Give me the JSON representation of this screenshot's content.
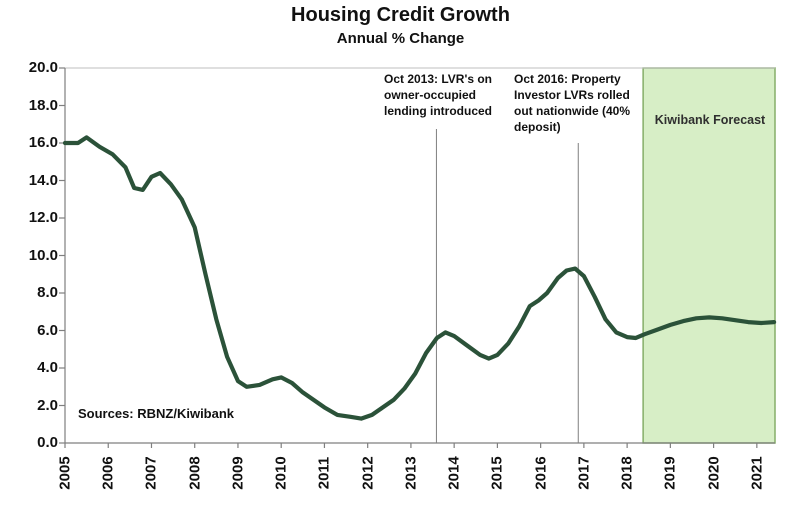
{
  "header": {
    "title": "Housing Credit Growth",
    "subtitle": "Annual % Change"
  },
  "source_note": "Sources: RBNZ/Kiwibank",
  "forecast_region": {
    "label": "Kiwibank Forecast",
    "start_year": 2018.37,
    "end_year": 2021.42,
    "fill_color": "#d7eec6",
    "border_color": "#85ae69"
  },
  "annotations": [
    {
      "id": "lvr-2013",
      "lines": [
        "Oct 2013: LVR's on",
        "owner-occupied",
        "lending introduced"
      ],
      "x_year": 2013.59,
      "line_top_value": 16.75
    },
    {
      "id": "lvr-2016",
      "lines": [
        "Oct 2016: Property",
        "Investor LVRs rolled",
        "out nationwide (40%",
        "deposit)"
      ],
      "x_year": 2016.87,
      "line_top_value": 16.0
    }
  ],
  "colors": {
    "line": "#2b5239",
    "axis": "#7f7f7f",
    "frame": "#bfbfbf",
    "annotation_line": "#7f7f7f",
    "text": "#111111"
  },
  "chart_data": {
    "type": "line",
    "title": "Housing Credit Growth",
    "subtitle": "Annual % Change",
    "xlabel": "",
    "ylabel": "Annual % change",
    "ylim": [
      0,
      20
    ],
    "ytick_step": 2,
    "ytick_decimals": 1,
    "x_range": [
      2005,
      2021.42
    ],
    "x_ticks": [
      2005,
      2006,
      2007,
      2008,
      2009,
      2010,
      2011,
      2012,
      2013,
      2014,
      2015,
      2016,
      2017,
      2018,
      2019,
      2020,
      2021
    ],
    "grid": false,
    "legend": false,
    "forecast_start_year": 2018.37,
    "series": [
      {
        "name": "Housing credit growth (annual % change)",
        "x": [
          2005.0,
          2005.3,
          2005.5,
          2005.8,
          2006.1,
          2006.4,
          2006.6,
          2006.8,
          2007.0,
          2007.2,
          2007.45,
          2007.7,
          2008.0,
          2008.25,
          2008.5,
          2008.75,
          2009.0,
          2009.2,
          2009.5,
          2009.8,
          2010.0,
          2010.25,
          2010.5,
          2010.75,
          2011.0,
          2011.3,
          2011.6,
          2011.85,
          2012.1,
          2012.35,
          2012.6,
          2012.85,
          2013.1,
          2013.35,
          2013.6,
          2013.8,
          2014.0,
          2014.3,
          2014.6,
          2014.8,
          2015.0,
          2015.25,
          2015.5,
          2015.75,
          2015.95,
          2016.15,
          2016.4,
          2016.6,
          2016.8,
          2017.0,
          2017.25,
          2017.5,
          2017.75,
          2018.0,
          2018.2,
          2018.4,
          2018.7,
          2019.0,
          2019.3,
          2019.6,
          2019.9,
          2020.2,
          2020.5,
          2020.8,
          2021.1,
          2021.4
        ],
        "y": [
          16.0,
          16.0,
          16.3,
          15.8,
          15.4,
          14.7,
          13.6,
          13.5,
          14.2,
          14.4,
          13.8,
          13.0,
          11.5,
          9.0,
          6.6,
          4.6,
          3.3,
          3.0,
          3.1,
          3.4,
          3.5,
          3.2,
          2.7,
          2.3,
          1.9,
          1.5,
          1.4,
          1.3,
          1.5,
          1.9,
          2.3,
          2.9,
          3.7,
          4.8,
          5.6,
          5.9,
          5.7,
          5.2,
          4.7,
          4.5,
          4.7,
          5.3,
          6.2,
          7.3,
          7.6,
          8.0,
          8.8,
          9.2,
          9.3,
          8.9,
          7.8,
          6.6,
          5.9,
          5.65,
          5.6,
          5.8,
          6.05,
          6.3,
          6.5,
          6.65,
          6.7,
          6.65,
          6.55,
          6.45,
          6.4,
          6.45
        ]
      }
    ]
  }
}
